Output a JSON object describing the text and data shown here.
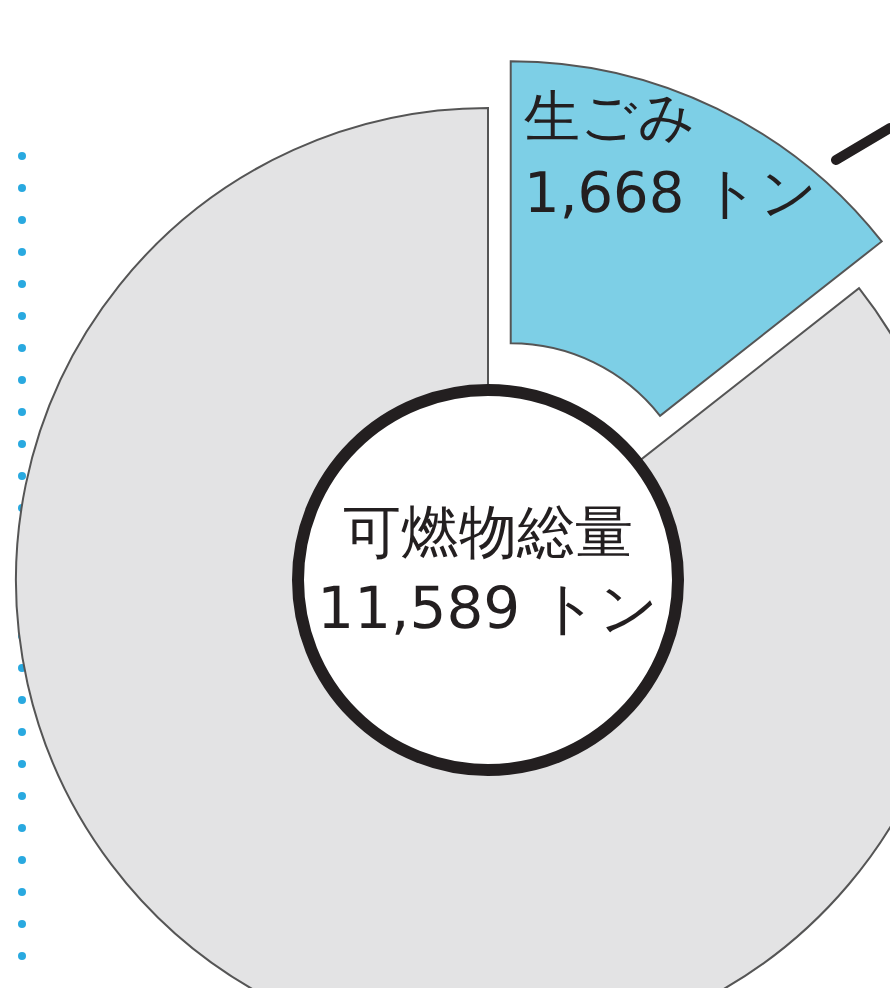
{
  "chart_data": {
    "type": "donut",
    "categories": [
      "生ごみ",
      null
    ],
    "values": [
      1668,
      9921
    ],
    "colors": [
      "#7dcfe6",
      "#e3e3e4"
    ],
    "value_labels": [
      "1,668 トン",
      null
    ],
    "annotations": [
      "可燃物総量",
      "11,589 トン"
    ]
  }
}
